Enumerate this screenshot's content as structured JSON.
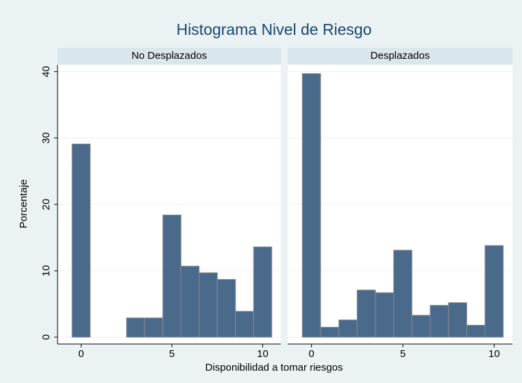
{
  "title": "Histograma Nivel de Riesgo",
  "x_label": "Disponibilidad a tomar riesgos",
  "y_label": "Porcentaje",
  "chart_data": [
    {
      "type": "histogram",
      "subtitle": "No Desplazados",
      "bins": [
        -0.5,
        0.5,
        1.5,
        2.5,
        3.5,
        4.5,
        5.5,
        6.5,
        7.5,
        8.5,
        9.5,
        10.5
      ],
      "values": [
        29.1,
        0,
        0,
        2.9,
        2.9,
        18.4,
        10.7,
        9.7,
        8.7,
        3.9,
        13.6
      ],
      "color": "#4a6a8c",
      "xlim": [
        -1.3,
        11
      ],
      "ylim": [
        0,
        41
      ],
      "xticks": [
        0,
        5,
        10
      ],
      "yticks": [
        0,
        10,
        20,
        30,
        40
      ],
      "grid": true
    },
    {
      "type": "histogram",
      "subtitle": "Desplazados",
      "bins": [
        -0.5,
        0.5,
        1.5,
        2.5,
        3.5,
        4.5,
        5.5,
        6.5,
        7.5,
        8.5,
        9.5,
        10.5
      ],
      "values": [
        39.7,
        1.5,
        2.6,
        7.1,
        6.7,
        13.1,
        3.3,
        4.8,
        5.2,
        1.8,
        13.8
      ],
      "color": "#4a6a8c",
      "xlim": [
        -1.3,
        11
      ],
      "ylim": [
        0,
        41
      ],
      "xticks": [
        0,
        5,
        10
      ],
      "yticks": [
        0,
        10,
        20,
        30,
        40
      ],
      "grid": true
    }
  ]
}
